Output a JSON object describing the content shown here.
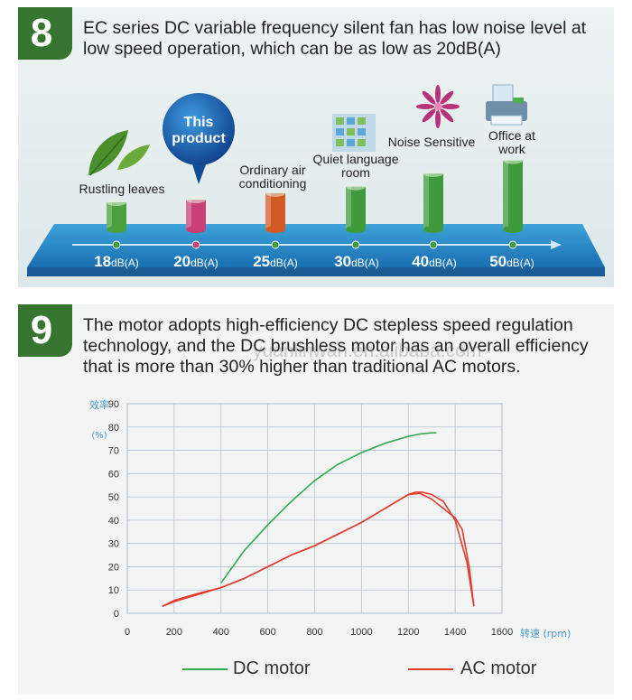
{
  "section1": {
    "number": "8",
    "text": "EC series DC variable frequency silent fan has low noise level at low speed operation, which can be as low as 20dB(A)",
    "callout": "This product",
    "items": [
      {
        "label": "Rustling leaves",
        "value": "18",
        "unit": "dB(A)",
        "color": "#4aa03c"
      },
      {
        "label": "",
        "value": "20",
        "unit": "dB(A)",
        "color": "#c93f78"
      },
      {
        "label": "Ordinary air conditioning",
        "value": "25",
        "unit": "dB(A)",
        "color": "#d35a25"
      },
      {
        "label": "Quiet language room",
        "value": "30",
        "unit": "dB(A)",
        "color": "#3e9a3a"
      },
      {
        "label": "Noise Sensitive",
        "value": "40",
        "unit": "dB(A)",
        "color": "#3e9a3a"
      },
      {
        "label": "Office at work",
        "value": "50",
        "unit": "dB(A)",
        "color": "#3e9a3a"
      }
    ],
    "icons": [
      "leaves-icon",
      "building-icon",
      "flower-icon",
      "printer-icon"
    ]
  },
  "section2": {
    "number": "9",
    "text": "The motor adopts high-efficiency DC stepless speed regulation technology, and the DC brushless motor has an overall efficiency that is more than 30% higher than traditional AC motors.",
    "watermark": "yuanlinwan.en.alibaba.com"
  },
  "chart_data": {
    "type": "line",
    "ylabel": "效率 (%)",
    "xlabel": "转速 (rpm)",
    "xlim": [
      0,
      1600
    ],
    "ylim": [
      0,
      90
    ],
    "x_ticks": [
      0,
      200,
      400,
      600,
      800,
      1000,
      1200,
      1400,
      1600
    ],
    "y_ticks": [
      0,
      10,
      20,
      30,
      40,
      50,
      60,
      70,
      80,
      90
    ],
    "grid": true,
    "legend_placement": "bottom",
    "series": [
      {
        "name": "DC motor",
        "color": "#33a852",
        "x": [
          400,
          500,
          600,
          700,
          800,
          900,
          1000,
          1100,
          1200,
          1250,
          1300,
          1320
        ],
        "y": [
          13,
          27,
          38,
          48,
          57,
          64,
          69,
          73,
          76,
          77,
          77.5,
          77.5
        ]
      },
      {
        "name": "AC motor",
        "color": "#e23b2e",
        "x": [
          150,
          200,
          300,
          400,
          500,
          600,
          700,
          800,
          900,
          1000,
          1100,
          1200,
          1230,
          1260,
          1300,
          1350,
          1400,
          1450,
          1480
        ],
        "y": [
          3,
          5,
          8,
          11,
          15,
          20,
          25,
          29,
          34,
          39,
          45,
          51,
          52,
          52,
          51,
          48,
          40,
          22,
          3
        ]
      },
      {
        "name": "",
        "color": "#e23b2e",
        "x": [
          150,
          200,
          300,
          400,
          500,
          600,
          700,
          800,
          900,
          1000,
          1100,
          1200,
          1250,
          1300,
          1350,
          1400,
          1430,
          1460,
          1480
        ],
        "y": [
          3,
          5.5,
          8.5,
          11,
          15,
          20,
          25,
          29,
          34,
          39,
          45,
          51,
          51.5,
          49,
          45,
          41,
          36,
          20,
          3
        ]
      }
    ]
  }
}
